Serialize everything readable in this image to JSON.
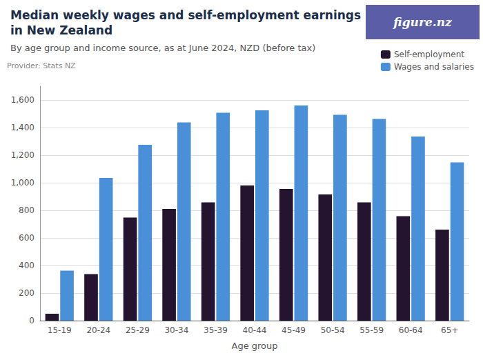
{
  "chart_data": {
    "type": "bar",
    "title": "Median weekly wages and self-employment earnings\nin New Zealand",
    "subtitle": "By age group and income source, as at June 2024, NZD (before tax)",
    "annotations": [
      "Provider: Stats NZ",
      "figure.nz"
    ],
    "xlabel": "Age group",
    "categories": [
      "15-19",
      "20-24",
      "25-29",
      "30-34",
      "35-39",
      "40-44",
      "45-49",
      "50-54",
      "55-59",
      "60-64",
      "65+"
    ],
    "series": [
      {
        "name": "Self-employment",
        "color": "#251430",
        "values": [
          50,
          338,
          748,
          810,
          857,
          980,
          955,
          915,
          858,
          758,
          660
        ]
      },
      {
        "name": "Wages and salaries",
        "color": "#4a90d9",
        "values": [
          362,
          1035,
          1275,
          1437,
          1507,
          1525,
          1560,
          1492,
          1462,
          1335,
          1148
        ]
      }
    ],
    "ylim": [
      0,
      1700
    ],
    "yticks": [
      0,
      200,
      400,
      600,
      800,
      {
        "value": 1000,
        "label": "1,000"
      },
      {
        "value": 1200,
        "label": "1,200"
      },
      {
        "value": 1400,
        "label": "1,400"
      },
      {
        "value": 1600,
        "label": "1,600"
      }
    ],
    "grid": true,
    "legend": "upper right"
  }
}
